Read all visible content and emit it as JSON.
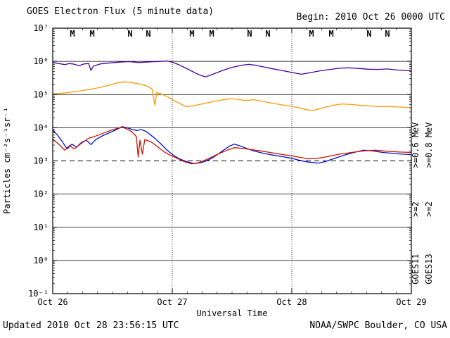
{
  "header": {
    "title": "GOES Electron Flux (5 minute data)",
    "begin": "Begin: 2010 Oct 26 0000 UTC"
  },
  "footer": {
    "updated": "Updated 2010 Oct 28 23:56:15 UTC",
    "credit": "NOAA/SWPC Boulder, CO USA"
  },
  "legend": {
    "columns": [
      {
        "satellite": "GOES11",
        "satellite_color": "#000000",
        "channels": [
          {
            "label": ">=0.6 MeV",
            "color": "#440099"
          },
          {
            "label": ">=2",
            "color": "#0011cc"
          }
        ]
      },
      {
        "satellite": "GOES13",
        "satellite_color": "#000000",
        "channels": [
          {
            "label": ">=0.8 MeV",
            "color": "#ff9900"
          },
          {
            "label": ">=2",
            "color": "#cc1100"
          }
        ]
      }
    ]
  },
  "chart_data": {
    "type": "line",
    "title": "GOES Electron Flux (5 minute data)",
    "xlabel": "Universal Time",
    "ylabel": "Particles cm⁻²s⁻¹sr⁻¹",
    "y_scale": "log10",
    "ylim": [
      0.1,
      10000000
    ],
    "x_range_days": [
      0,
      3
    ],
    "xticks": [
      {
        "t": 0,
        "label": "Oct 26"
      },
      {
        "t": 1,
        "label": "Oct 27"
      },
      {
        "t": 2,
        "label": "Oct 28"
      },
      {
        "t": 3,
        "label": "Oct 29"
      }
    ],
    "yticks": [
      {
        "exp": 7,
        "label": "10⁷"
      },
      {
        "exp": 6,
        "label": "10⁶"
      },
      {
        "exp": 5,
        "label": "10⁵"
      },
      {
        "exp": 4,
        "label": "10⁴"
      },
      {
        "exp": 3,
        "label": "10³"
      },
      {
        "exp": 2,
        "label": "10²"
      },
      {
        "exp": 1,
        "label": "10¹"
      },
      {
        "exp": 0,
        "label": "10⁰"
      },
      {
        "exp": -1,
        "label": "10⁻¹"
      }
    ],
    "grid_exps": [
      0,
      1,
      2,
      4,
      5,
      6
    ],
    "threshold": {
      "value": 1000,
      "style": "dashed"
    },
    "day_gridlines": [
      1,
      2
    ],
    "markers": [
      {
        "letter": "M",
        "t": 0.165,
        "color": "#cc0000"
      },
      {
        "letter": "M",
        "t": 0.33,
        "color": "#0000bb"
      },
      {
        "letter": "N",
        "t": 0.647,
        "color": "#cc0000"
      },
      {
        "letter": "N",
        "t": 0.8,
        "color": "#0000bb"
      },
      {
        "letter": "M",
        "t": 1.165,
        "color": "#cc0000"
      },
      {
        "letter": "M",
        "t": 1.33,
        "color": "#0000bb"
      },
      {
        "letter": "N",
        "t": 1.647,
        "color": "#cc0000"
      },
      {
        "letter": "N",
        "t": 1.8,
        "color": "#0000bb"
      },
      {
        "letter": "M",
        "t": 2.165,
        "color": "#cc0000"
      },
      {
        "letter": "M",
        "t": 2.33,
        "color": "#0000bb"
      },
      {
        "letter": "N",
        "t": 2.647,
        "color": "#cc0000"
      },
      {
        "letter": "N",
        "t": 2.8,
        "color": "#0000bb"
      }
    ],
    "series": [
      {
        "name": "GOES11 >=0.6 MeV",
        "color": "#440099",
        "points": [
          [
            0.0,
            920000.0
          ],
          [
            0.05,
            860000.0
          ],
          [
            0.1,
            800000.0
          ],
          [
            0.14,
            860000.0
          ],
          [
            0.18,
            820000.0
          ],
          [
            0.22,
            740000.0
          ],
          [
            0.26,
            830000.0
          ],
          [
            0.3,
            860000.0
          ],
          [
            0.32,
            530000.0
          ],
          [
            0.34,
            720000.0
          ],
          [
            0.4,
            840000.0
          ],
          [
            0.48,
            900000.0
          ],
          [
            0.56,
            950000.0
          ],
          [
            0.64,
            980000.0
          ],
          [
            0.72,
            920000.0
          ],
          [
            0.8,
            960000.0
          ],
          [
            0.88,
            990000.0
          ],
          [
            0.96,
            1020000.0
          ],
          [
            1.0,
            940000.0
          ],
          [
            1.06,
            780000.0
          ],
          [
            1.14,
            560000.0
          ],
          [
            1.22,
            400000.0
          ],
          [
            1.28,
            340000.0
          ],
          [
            1.34,
            410000.0
          ],
          [
            1.42,
            530000.0
          ],
          [
            1.5,
            660000.0
          ],
          [
            1.58,
            760000.0
          ],
          [
            1.64,
            810000.0
          ],
          [
            1.7,
            760000.0
          ],
          [
            1.78,
            660000.0
          ],
          [
            1.86,
            580000.0
          ],
          [
            1.94,
            510000.0
          ],
          [
            2.02,
            450000.0
          ],
          [
            2.08,
            410000.0
          ],
          [
            2.16,
            460000.0
          ],
          [
            2.24,
            520000.0
          ],
          [
            2.32,
            570000.0
          ],
          [
            2.4,
            620000.0
          ],
          [
            2.48,
            640000.0
          ],
          [
            2.56,
            610000.0
          ],
          [
            2.64,
            580000.0
          ],
          [
            2.72,
            570000.0
          ],
          [
            2.8,
            590000.0
          ],
          [
            2.88,
            550000.0
          ],
          [
            2.94,
            530000.0
          ],
          [
            3.0,
            520000.0
          ]
        ]
      },
      {
        "name": "GOES13 >=0.8 MeV",
        "color": "#ff9900",
        "points": [
          [
            0.0,
            105000.0
          ],
          [
            0.08,
            110000.0
          ],
          [
            0.16,
            118000.0
          ],
          [
            0.24,
            130000.0
          ],
          [
            0.32,
            145000.0
          ],
          [
            0.4,
            165000.0
          ],
          [
            0.48,
            195000.0
          ],
          [
            0.54,
            225000.0
          ],
          [
            0.6,
            240000.0
          ],
          [
            0.66,
            230000.0
          ],
          [
            0.72,
            210000.0
          ],
          [
            0.78,
            185000.0
          ],
          [
            0.83,
            150000.0
          ],
          [
            0.855,
            48000.0
          ],
          [
            0.87,
            115000.0
          ],
          [
            0.92,
            100000.0
          ],
          [
            0.97,
            82000.0
          ],
          [
            1.02,
            64000.0
          ],
          [
            1.07,
            52000.0
          ],
          [
            1.12,
            43000.0
          ],
          [
            1.18,
            46000.0
          ],
          [
            1.26,
            53000.0
          ],
          [
            1.34,
            61000.0
          ],
          [
            1.42,
            69000.0
          ],
          [
            1.5,
            75000.0
          ],
          [
            1.56,
            70000.0
          ],
          [
            1.62,
            66000.0
          ],
          [
            1.68,
            70000.0
          ],
          [
            1.74,
            64000.0
          ],
          [
            1.82,
            56000.0
          ],
          [
            1.9,
            50000.0
          ],
          [
            1.98,
            45000.0
          ],
          [
            2.06,
            40000.0
          ],
          [
            2.12,
            35000.0
          ],
          [
            2.18,
            33000.0
          ],
          [
            2.26,
            40000.0
          ],
          [
            2.34,
            47000.0
          ],
          [
            2.42,
            52000.0
          ],
          [
            2.5,
            50000.0
          ],
          [
            2.58,
            47000.0
          ],
          [
            2.66,
            45000.0
          ],
          [
            2.74,
            43000.0
          ],
          [
            2.82,
            44000.0
          ],
          [
            2.9,
            42000.0
          ],
          [
            3.0,
            40000.0
          ]
        ]
      },
      {
        "name": "GOES11 >=2 MeV",
        "color": "#0011cc",
        "points": [
          [
            0.0,
            8500.0
          ],
          [
            0.04,
            6000.0
          ],
          [
            0.08,
            3800.0
          ],
          [
            0.12,
            2300.0
          ],
          [
            0.16,
            3200.0
          ],
          [
            0.2,
            2600.0
          ],
          [
            0.24,
            3600.0
          ],
          [
            0.28,
            4200.0
          ],
          [
            0.32,
            3100.0
          ],
          [
            0.36,
            4400.0
          ],
          [
            0.42,
            5800.0
          ],
          [
            0.48,
            7200.0
          ],
          [
            0.54,
            9000.0
          ],
          [
            0.58,
            10800.0
          ],
          [
            0.62,
            10000.0
          ],
          [
            0.66,
            9000.0
          ],
          [
            0.7,
            8200.0
          ],
          [
            0.74,
            8800.0
          ],
          [
            0.78,
            7800.0
          ],
          [
            0.82,
            6000.0
          ],
          [
            0.86,
            4600.0
          ],
          [
            0.9,
            3400.0
          ],
          [
            0.94,
            2400.0
          ],
          [
            0.98,
            1800.0
          ],
          [
            1.02,
            1400.0
          ],
          [
            1.06,
            1150.0
          ],
          [
            1.12,
            950.0
          ],
          [
            1.18,
            830.0
          ],
          [
            1.24,
            880.0
          ],
          [
            1.3,
            1050.0
          ],
          [
            1.36,
            1400.0
          ],
          [
            1.42,
            2000.0
          ],
          [
            1.48,
            2800.0
          ],
          [
            1.52,
            3200.0
          ],
          [
            1.56,
            2900.0
          ],
          [
            1.62,
            2400.0
          ],
          [
            1.68,
            2000.0
          ],
          [
            1.76,
            1700.0
          ],
          [
            1.84,
            1500.0
          ],
          [
            1.92,
            1350.0
          ],
          [
            2.0,
            1200.0
          ],
          [
            2.06,
            1050.0
          ],
          [
            2.14,
            920.0
          ],
          [
            2.22,
            860.0
          ],
          [
            2.28,
            950.0
          ],
          [
            2.36,
            1200.0
          ],
          [
            2.44,
            1500.0
          ],
          [
            2.52,
            1800.0
          ],
          [
            2.6,
            2100.0
          ],
          [
            2.68,
            2000.0
          ],
          [
            2.76,
            1800.0
          ],
          [
            2.84,
            1700.0
          ],
          [
            2.92,
            1600.0
          ],
          [
            3.0,
            1550.0
          ]
        ]
      },
      {
        "name": "GOES13 >=2 MeV",
        "color": "#cc1100",
        "points": [
          [
            0.0,
            4600.0
          ],
          [
            0.05,
            3200.0
          ],
          [
            0.1,
            2100.0
          ],
          [
            0.14,
            2900.0
          ],
          [
            0.18,
            2300.0
          ],
          [
            0.24,
            3400.0
          ],
          [
            0.3,
            4800.0
          ],
          [
            0.36,
            5600.0
          ],
          [
            0.42,
            6800.0
          ],
          [
            0.48,
            8200.0
          ],
          [
            0.54,
            9600.0
          ],
          [
            0.58,
            10500.0
          ],
          [
            0.62,
            9200.0
          ],
          [
            0.66,
            7600.0
          ],
          [
            0.7,
            5400.0
          ],
          [
            0.715,
            1300.0
          ],
          [
            0.73,
            4200.0
          ],
          [
            0.75,
            1600.0
          ],
          [
            0.77,
            4400.0
          ],
          [
            0.82,
            3800.0
          ],
          [
            0.86,
            3000.0
          ],
          [
            0.9,
            2300.0
          ],
          [
            0.94,
            1800.0
          ],
          [
            0.98,
            1500.0
          ],
          [
            1.04,
            1200.0
          ],
          [
            1.1,
            950.0
          ],
          [
            1.16,
            820.0
          ],
          [
            1.22,
            880.0
          ],
          [
            1.3,
            1150.0
          ],
          [
            1.38,
            1600.0
          ],
          [
            1.46,
            2100.0
          ],
          [
            1.52,
            2500.0
          ],
          [
            1.58,
            2400.0
          ],
          [
            1.66,
            2200.0
          ],
          [
            1.74,
            2000.0
          ],
          [
            1.82,
            1800.0
          ],
          [
            1.9,
            1600.0
          ],
          [
            1.98,
            1450.0
          ],
          [
            2.06,
            1300.0
          ],
          [
            2.14,
            1150.0
          ],
          [
            2.22,
            1200.0
          ],
          [
            2.3,
            1350.0
          ],
          [
            2.4,
            1600.0
          ],
          [
            2.5,
            1800.0
          ],
          [
            2.6,
            2000.0
          ],
          [
            2.7,
            2100.0
          ],
          [
            2.8,
            1950.0
          ],
          [
            2.9,
            1850.0
          ],
          [
            3.0,
            1800.0
          ]
        ]
      }
    ]
  }
}
